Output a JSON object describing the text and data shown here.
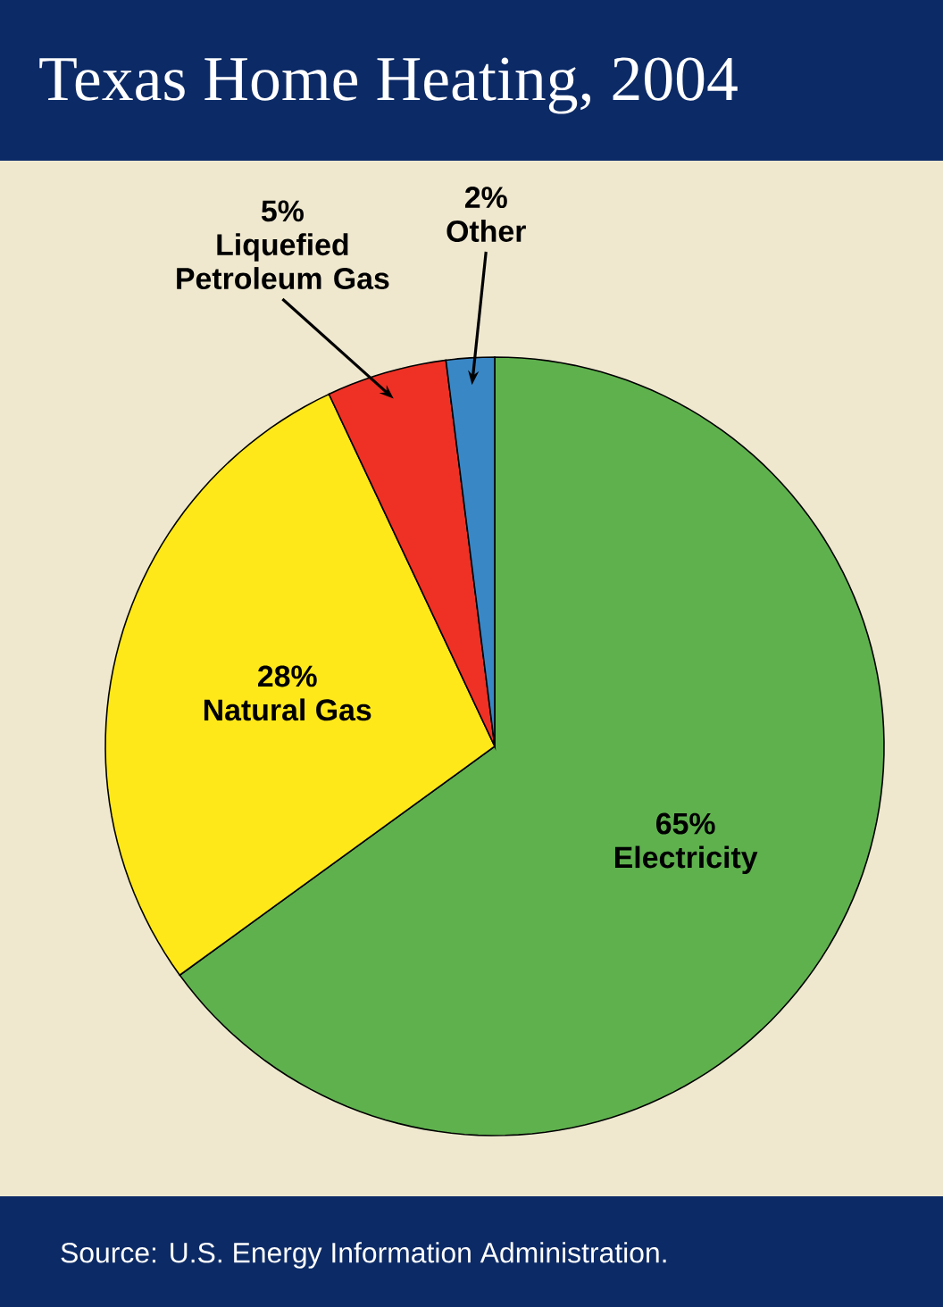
{
  "chart_data": {
    "type": "pie",
    "title": "Texas Home Heating, 2004",
    "categories": [
      "Electricity",
      "Natural Gas",
      "Liquefied Petroleum Gas",
      "Other"
    ],
    "values": [
      65,
      28,
      5,
      2
    ],
    "value_labels": [
      "65%",
      "28%",
      "5%",
      "2%"
    ],
    "colors": [
      "#5fb14e",
      "#ffe81a",
      "#ee3124",
      "#3a87c6"
    ],
    "annotations": [
      "Source: U.S. Energy Information Administration."
    ]
  }
}
